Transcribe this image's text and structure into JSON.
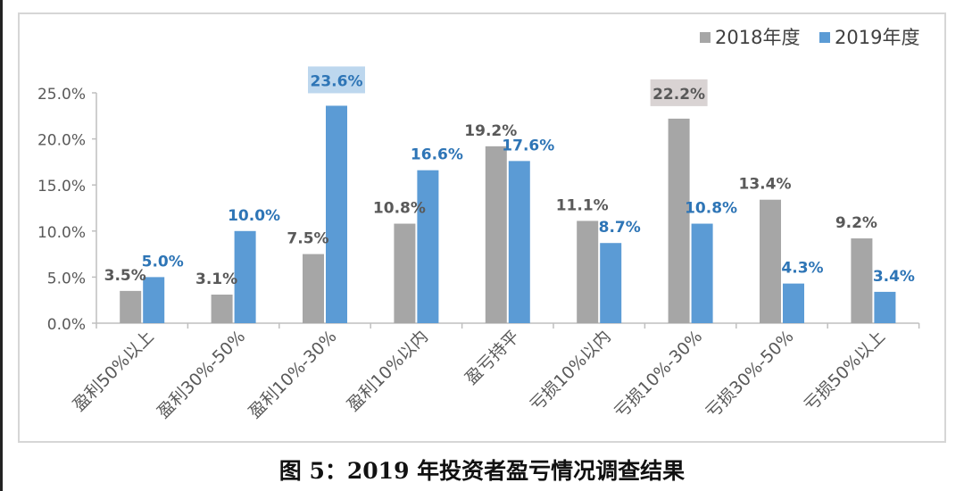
{
  "caption": "图 5：2019 年投资者盈亏情况调查结果",
  "colors": {
    "series_2018": "#a6a6a6",
    "series_2019": "#5b9bd5",
    "label_2018": "#595959",
    "label_2019": "#2e75b6",
    "axis": "#bfbfbf",
    "tick_text": "#595959",
    "highlight_2019_bg": "#bdd7ee",
    "highlight_2018_bg": "#d9d3d3"
  },
  "chart_data": {
    "type": "bar",
    "title": "",
    "xlabel": "",
    "ylabel": "",
    "ylim": [
      0,
      25
    ],
    "yticks": [
      "0.0%",
      "5.0%",
      "10.0%",
      "15.0%",
      "20.0%",
      "25.0%"
    ],
    "grid": false,
    "legend_position": "top-right",
    "categories": [
      "盈利50%以上",
      "盈利30%-50%",
      "盈利10%-30%",
      "盈利10%以内",
      "盈亏持平",
      "亏损10%以内",
      "亏损10%-30%",
      "亏损30%-50%",
      "亏损50%以上"
    ],
    "series": [
      {
        "name": "2018年度",
        "values": [
          3.5,
          3.1,
          7.5,
          10.8,
          19.2,
          11.1,
          22.2,
          13.4,
          9.2
        ],
        "labels": [
          "3.5%",
          "3.1%",
          "7.5%",
          "10.8%",
          "19.2%",
          "11.1%",
          "22.2%",
          "13.4%",
          "9.2%"
        ]
      },
      {
        "name": "2019年度",
        "values": [
          5.0,
          10.0,
          23.6,
          16.6,
          17.6,
          8.7,
          10.8,
          4.3,
          3.4
        ],
        "labels": [
          "5.0%",
          "10.0%",
          "23.6%",
          "16.6%",
          "17.6%",
          "8.7%",
          "10.8%",
          "4.3%",
          "3.4%"
        ]
      }
    ],
    "highlighted_labels": [
      {
        "series": "2019年度",
        "category": "盈利10%-30%"
      },
      {
        "series": "2018年度",
        "category": "亏损10%-30%"
      }
    ]
  }
}
